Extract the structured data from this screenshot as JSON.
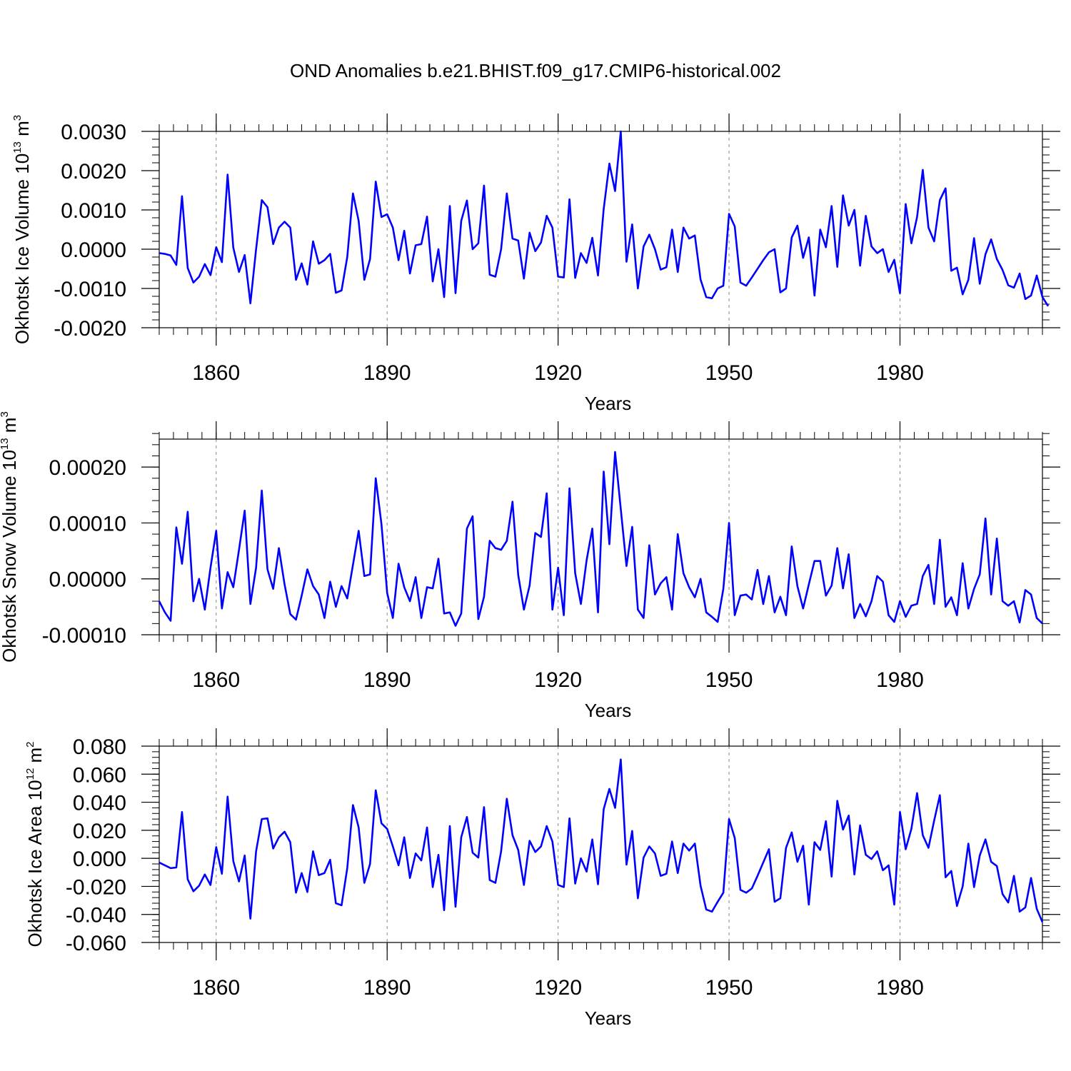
{
  "title": "OND Anomalies b.e21.BHIST.f09_g17.CMIP6-historical.002",
  "colors": {
    "series": "#0000ff",
    "axis": "#000000",
    "grid": "#888888"
  },
  "chart_data": [
    {
      "type": "line",
      "xlabel": "Years",
      "ylabel_main": "Okhotsk Ice Volume 10",
      "ylabel_exp": "13",
      "ylabel_unit": " m",
      "ylabel_unit_exp": "3",
      "xlim": [
        1850,
        2005
      ],
      "ylim": [
        -0.002,
        0.003
      ],
      "xticks": [
        1860,
        1890,
        1920,
        1950,
        1980
      ],
      "xtick_labels": [
        "1860",
        "1890",
        "1920",
        "1950",
        "1980"
      ],
      "yticks": [
        -0.002,
        -0.001,
        0.0,
        0.001,
        0.002,
        0.003
      ],
      "ytick_labels": [
        "-0.0020",
        "-0.0010",
        "0.0000",
        "0.0010",
        "0.0020",
        "0.0030"
      ],
      "yminor_step": 0.0002,
      "x_start": 1850,
      "values": [
        -0.0001,
        -0.00012,
        -0.00016,
        -0.0004,
        0.00135,
        -0.00048,
        -0.00085,
        -0.0007,
        -0.00038,
        -0.00066,
        5e-05,
        -0.00033,
        0.0019,
        4e-05,
        -0.00058,
        -0.00015,
        -0.00138,
        0.0,
        0.00125,
        0.00107,
        0.00013,
        0.00055,
        0.0007,
        0.00055,
        -0.00078,
        -0.00036,
        -0.0009,
        0.0002,
        -0.00037,
        -0.00028,
        -0.00012,
        -0.00111,
        -0.00105,
        -0.0002,
        0.00142,
        0.00072,
        -0.00078,
        -0.00025,
        0.00172,
        0.00082,
        0.00089,
        0.00055,
        -0.00028,
        0.00047,
        -0.00062,
        0.0001,
        0.00013,
        0.00083,
        -0.00082,
        0.0,
        -0.00122,
        0.0011,
        -0.00112,
        0.00072,
        0.00124,
        0.0,
        0.00015,
        0.00162,
        -0.00065,
        -0.0007,
        0.0,
        0.00142,
        0.00027,
        0.00022,
        -0.00075,
        0.00042,
        -5e-05,
        0.00017,
        0.00085,
        0.00055,
        -0.0007,
        -0.00072,
        0.00127,
        -0.00073,
        -0.0001,
        -0.00035,
        0.00029,
        -0.00067,
        0.00102,
        0.00218,
        0.00148,
        0.003,
        -0.00032,
        0.00063,
        -0.001,
        7e-05,
        0.00037,
        0.0,
        -0.00052,
        -0.00046,
        0.0005,
        -0.00058,
        0.00055,
        0.00027,
        0.00035,
        -0.00077,
        -0.00122,
        -0.00125,
        -0.001,
        -0.00093,
        0.0009,
        0.00058,
        -0.00085,
        -0.00093,
        -0.00072,
        -0.0005,
        -0.00028,
        -8e-05,
        0.0,
        -0.0011,
        -0.001,
        0.0003,
        0.0006,
        -0.00022,
        0.0003,
        -0.00118,
        0.0005,
        5e-05,
        0.0011,
        -0.00045,
        0.00137,
        0.0006,
        0.001,
        -0.00042,
        0.00085,
        7e-05,
        -0.0001,
        0.0,
        -0.00058,
        -0.00027,
        -0.00112,
        0.00115,
        0.00015,
        0.00082,
        0.00202,
        0.00055,
        0.0002,
        0.00125,
        0.00155,
        -0.00055,
        -0.00047,
        -0.00115,
        -0.00078,
        0.00028,
        -0.00088,
        -0.00013,
        0.00025,
        -0.00025,
        -0.00053,
        -0.00092,
        -0.00098,
        -0.00062,
        -0.00127,
        -0.00118,
        -0.00067,
        -0.00122,
        -0.00145
      ]
    },
    {
      "type": "line",
      "xlabel": "Years",
      "ylabel_main": "Okhotsk Snow Volume 10",
      "ylabel_exp": "13",
      "ylabel_unit": " m",
      "ylabel_unit_exp": "3",
      "xlim": [
        1850,
        2005
      ],
      "ylim": [
        -0.0001,
        0.00025
      ],
      "xticks": [
        1860,
        1890,
        1920,
        1950,
        1980
      ],
      "xtick_labels": [
        "1860",
        "1890",
        "1920",
        "1950",
        "1980"
      ],
      "yticks": [
        -0.0001,
        0.0,
        0.0001,
        0.0002
      ],
      "ytick_labels": [
        "-0.00010",
        "0.00000",
        "0.00010",
        "0.00020"
      ],
      "yminor_step": 2e-05,
      "x_start": 1850,
      "values": [
        -4e-05,
        -6e-05,
        -7.5e-05,
        9.2e-05,
        2.7e-05,
        0.00012,
        -4e-05,
        0.0,
        -5.5e-05,
        2e-05,
        8.6e-05,
        -5.3e-05,
        1.2e-05,
        -1.5e-05,
        5.2e-05,
        0.000122,
        -4.5e-05,
        2e-05,
        0.000158,
        1.7e-05,
        -1.8e-05,
        5.5e-05,
        -1e-05,
        -6.3e-05,
        -7.3e-05,
        -3e-05,
        1.7e-05,
        -1.3e-05,
        -2.8e-05,
        -7e-05,
        -5e-06,
        -5e-05,
        -1.3e-05,
        -3.5e-05,
        2.5e-05,
        8.6e-05,
        5e-06,
        8e-06,
        0.00018,
        9.8e-05,
        -2.5e-05,
        -7e-05,
        2.7e-05,
        -1.5e-05,
        -4e-05,
        3e-06,
        -7e-05,
        -1.5e-05,
        -1.7e-05,
        3.6e-05,
        -6.2e-05,
        -6e-05,
        -8.4e-05,
        -6.2e-05,
        9e-05,
        0.000112,
        -7.2e-05,
        -3.2e-05,
        6.8e-05,
        5.5e-05,
        5.2e-05,
        6.8e-05,
        0.000138,
        7e-06,
        -5.5e-05,
        -1.2e-05,
        8.2e-05,
        7.5e-05,
        0.000153,
        -5.5e-05,
        2e-05,
        -6.5e-05,
        0.000162,
        1e-05,
        -4.5e-05,
        3.3e-05,
        9e-05,
        -6e-05,
        0.000192,
        6.2e-05,
        0.000227,
        0.000125,
        2.3e-05,
        9.3e-05,
        -5.5e-05,
        -7e-05,
        6e-05,
        -2.8e-05,
        -8e-06,
        3e-06,
        -5.5e-05,
        8e-05,
        1e-05,
        -1.5e-05,
        -3.3e-05,
        0.0,
        -6e-05,
        -6.8e-05,
        -7.7e-05,
        -1.8e-05,
        0.0001,
        -6.5e-05,
        -3e-05,
        -2.8e-05,
        -3.7e-05,
        1.6e-05,
        -4.5e-05,
        5e-06,
        -6e-05,
        -3.2e-05,
        -6.5e-05,
        5.8e-05,
        -1.3e-05,
        -5.3e-05,
        -1e-05,
        3.2e-05,
        3.2e-05,
        -3e-05,
        -1.2e-05,
        5.5e-05,
        -1.7e-05,
        4.4e-05,
        -7e-05,
        -4.5e-05,
        -6.7e-05,
        -4e-05,
        5e-06,
        -5e-06,
        -6.5e-05,
        -7.7e-05,
        -4e-05,
        -6.8e-05,
        -4.8e-05,
        -4.5e-05,
        5e-06,
        2.5e-05,
        -4.5e-05,
        7e-05,
        -5e-05,
        -3.3e-05,
        -6.5e-05,
        2.8e-05,
        -5.3e-05,
        -1.8e-05,
        8e-06,
        0.000108,
        -2.8e-05,
        7.2e-05,
        -4e-05,
        -4.8e-05,
        -4e-05,
        -7.8e-05,
        -2e-05,
        -2.8e-05,
        -7e-05,
        -8e-05
      ]
    },
    {
      "type": "line",
      "xlabel": "Years",
      "ylabel_main": "Okhotsk Ice Area 10",
      "ylabel_exp": "12",
      "ylabel_unit": " m",
      "ylabel_unit_exp": "2",
      "xlim": [
        1850,
        2005
      ],
      "ylim": [
        -0.06,
        0.08
      ],
      "xticks": [
        1860,
        1890,
        1920,
        1950,
        1980
      ],
      "xtick_labels": [
        "1860",
        "1890",
        "1920",
        "1950",
        "1980"
      ],
      "yticks": [
        -0.06,
        -0.04,
        -0.02,
        0.0,
        0.02,
        0.04,
        0.06,
        0.08
      ],
      "ytick_labels": [
        "-0.060",
        "-0.040",
        "-0.020",
        "0.000",
        "0.020",
        "0.040",
        "0.060",
        "0.080"
      ],
      "yminor_step": 0.004,
      "x_start": 1850,
      "values": [
        -0.003,
        -0.005,
        -0.007,
        -0.0065,
        0.033,
        -0.015,
        -0.0235,
        -0.0195,
        -0.0115,
        -0.019,
        0.008,
        -0.011,
        0.044,
        -0.002,
        -0.0165,
        0.002,
        -0.043,
        0.005,
        0.028,
        0.0285,
        0.007,
        0.015,
        0.019,
        0.0115,
        -0.0245,
        -0.0105,
        -0.024,
        0.005,
        -0.012,
        -0.0105,
        -0.001,
        -0.032,
        -0.0335,
        -0.007,
        0.038,
        0.022,
        -0.0175,
        -0.004,
        0.0485,
        0.025,
        0.021,
        0.0085,
        -0.005,
        0.015,
        -0.014,
        0.0035,
        -0.0015,
        0.022,
        -0.0205,
        0.0025,
        -0.037,
        0.023,
        -0.0345,
        0.015,
        0.0295,
        0.004,
        0.0005,
        0.0365,
        -0.0155,
        -0.0175,
        0.005,
        0.0425,
        0.0165,
        0.006,
        -0.019,
        0.0125,
        0.0045,
        0.0085,
        0.023,
        0.012,
        -0.019,
        -0.0205,
        0.0285,
        -0.018,
        0.0,
        -0.0095,
        0.0135,
        -0.0185,
        0.035,
        0.0495,
        0.036,
        0.0705,
        -0.0045,
        0.0195,
        -0.0285,
        0.0005,
        0.0085,
        0.0035,
        -0.0125,
        -0.011,
        0.012,
        -0.0105,
        0.0105,
        0.0055,
        0.0105,
        -0.0195,
        -0.0365,
        -0.038,
        -0.031,
        -0.0245,
        0.028,
        0.0145,
        -0.0225,
        -0.0245,
        -0.0215,
        -0.0125,
        -0.003,
        0.0065,
        -0.031,
        -0.0285,
        0.0075,
        0.0185,
        -0.0025,
        0.009,
        -0.033,
        0.0115,
        0.006,
        0.0265,
        -0.013,
        0.041,
        0.0205,
        0.0305,
        -0.0115,
        0.0235,
        0.0025,
        -0.0005,
        0.005,
        -0.0085,
        -0.005,
        -0.033,
        0.033,
        0.0065,
        0.021,
        0.0465,
        0.0165,
        0.0075,
        0.027,
        0.045,
        -0.0135,
        -0.009,
        -0.034,
        -0.02,
        0.0105,
        -0.0205,
        0.002,
        0.0135,
        -0.0025,
        -0.0055,
        -0.0255,
        -0.0315,
        -0.0125,
        -0.038,
        -0.035,
        -0.014,
        -0.036,
        -0.0455
      ]
    }
  ]
}
